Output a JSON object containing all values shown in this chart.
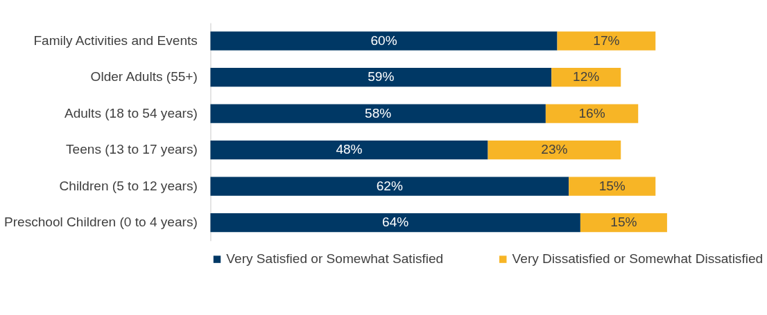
{
  "chart_data": {
    "type": "bar",
    "orientation": "horizontal",
    "stacked": true,
    "legend": "bottom",
    "tick_labels": "y",
    "categories": [
      "Family Activities and Events",
      "Older Adults (55+)",
      "Adults (18 to 54 years)",
      "Teens (13 to 17 years)",
      "Children (5 to 12 years)",
      "Preschool Children (0 to 4 years)"
    ],
    "series": [
      {
        "name": "Very Satisfied or Somewhat Satisfied",
        "color": "#003865",
        "values": [
          60,
          59,
          58,
          48,
          62,
          64
        ],
        "value_labels": [
          "60%",
          "59%",
          "58%",
          "48%",
          "62%",
          "64%"
        ]
      },
      {
        "name": "Very Dissatisfied or Somewhat Dissatisfied",
        "color": "#f7b526",
        "values": [
          17,
          12,
          16,
          23,
          15,
          15
        ],
        "value_labels": [
          "17%",
          "12%",
          "16%",
          "23%",
          "15%",
          "15%"
        ]
      }
    ]
  }
}
